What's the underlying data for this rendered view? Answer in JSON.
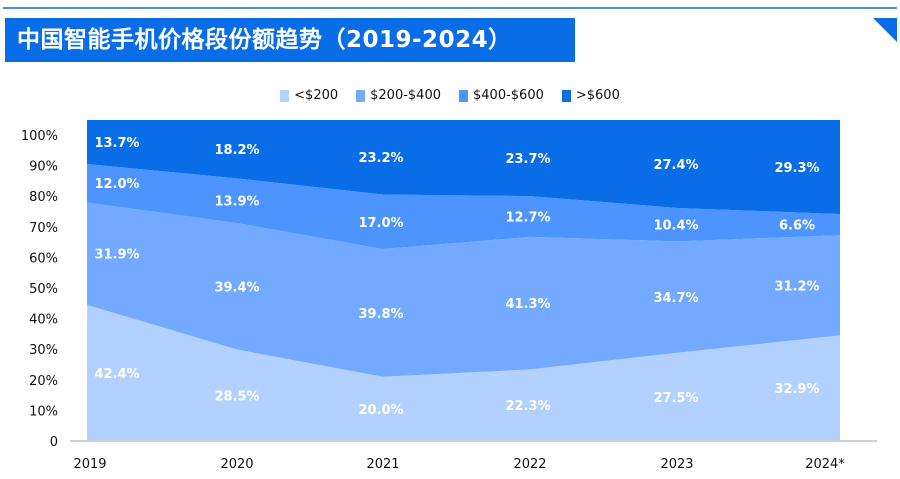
{
  "title": "中国智能手机价格段份额趋势（2019-2024）",
  "chart_data": {
    "type": "area",
    "stacked": true,
    "categories": [
      "2019",
      "2020",
      "2021",
      "2022",
      "2023",
      "2024*"
    ],
    "series": [
      {
        "name": "<$200",
        "color": "#b3d1ff",
        "values": [
          42.4,
          28.5,
          20.0,
          22.3,
          27.5,
          32.9
        ]
      },
      {
        "name": "$200-$400",
        "color": "#73aaff",
        "values": [
          31.9,
          39.4,
          39.8,
          41.3,
          34.7,
          31.2
        ]
      },
      {
        "name": "$400-$600",
        "color": "#4d94ff",
        "values": [
          12.0,
          13.9,
          17.0,
          12.7,
          10.4,
          6.6
        ]
      },
      {
        "name": ">$600",
        "color": "#0a6de8",
        "values": [
          13.7,
          18.2,
          23.2,
          23.7,
          27.4,
          29.3
        ]
      }
    ],
    "yticks": [
      "0",
      "10%",
      "20%",
      "30%",
      "40%",
      "50%",
      "60%",
      "70%",
      "80%",
      "90%",
      "100%"
    ],
    "ylim": [
      0,
      100
    ],
    "legend": "top-center",
    "grid": false,
    "data_label_suffix": "%"
  }
}
